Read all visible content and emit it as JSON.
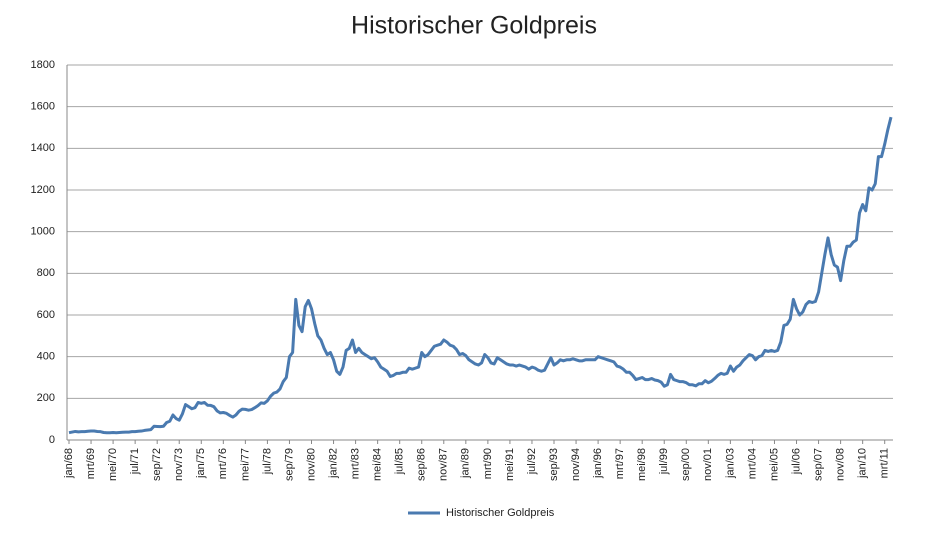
{
  "chart_data": {
    "type": "line",
    "title": "Historischer Goldpreis",
    "categories": [
      "jan/68",
      null,
      null,
      null,
      null,
      null,
      null,
      "mrt/69",
      null,
      null,
      null,
      null,
      null,
      null,
      "mei/70",
      null,
      null,
      null,
      null,
      null,
      null,
      "jul/71",
      null,
      null,
      null,
      null,
      null,
      null,
      "sep/72",
      null,
      null,
      null,
      null,
      null,
      null,
      "nov/73",
      null,
      null,
      null,
      null,
      null,
      null,
      "jan/75",
      null,
      null,
      null,
      null,
      null,
      null,
      "mrt/76",
      null,
      null,
      null,
      null,
      null,
      null,
      "mei/77",
      null,
      null,
      null,
      null,
      null,
      null,
      "jul/78",
      null,
      null,
      null,
      null,
      null,
      null,
      "sep/79",
      null,
      null,
      null,
      null,
      null,
      null,
      "nov/80",
      null,
      null,
      null,
      null,
      null,
      null,
      "jan/82",
      null,
      null,
      null,
      null,
      null,
      null,
      "mrt/83",
      null,
      null,
      null,
      null,
      null,
      null,
      "mei/84",
      null,
      null,
      null,
      null,
      null,
      null,
      "jul/85",
      null,
      null,
      null,
      null,
      null,
      null,
      "sep/86",
      null,
      null,
      null,
      null,
      null,
      null,
      "nov/87",
      null,
      null,
      null,
      null,
      null,
      null,
      "jan/89",
      null,
      null,
      null,
      null,
      null,
      null,
      "mrt/90",
      null,
      null,
      null,
      null,
      null,
      null,
      "mei/91",
      null,
      null,
      null,
      null,
      null,
      null,
      "jul/92",
      null,
      null,
      null,
      null,
      null,
      null,
      "sep/93",
      null,
      null,
      null,
      null,
      null,
      null,
      "nov/94",
      null,
      null,
      null,
      null,
      null,
      null,
      "jan/96",
      null,
      null,
      null,
      null,
      null,
      null,
      "mrt/97",
      null,
      null,
      null,
      null,
      null,
      null,
      "mei/98",
      null,
      null,
      null,
      null,
      null,
      null,
      "jul/99",
      null,
      null,
      null,
      null,
      null,
      null,
      "sep/00",
      null,
      null,
      null,
      null,
      null,
      null,
      "nov/01",
      null,
      null,
      null,
      null,
      null,
      null,
      "jan/03",
      null,
      null,
      null,
      null,
      null,
      null,
      "mrt/04",
      null,
      null,
      null,
      null,
      null,
      null,
      "mei/05",
      null,
      null,
      null,
      null,
      null,
      null,
      "jul/06",
      null,
      null,
      null,
      null,
      null,
      null,
      "sep/07",
      null,
      null,
      null,
      null,
      null,
      null,
      "nov/08",
      null,
      null,
      null,
      null,
      null,
      null,
      "jan/10",
      null,
      null,
      null,
      null,
      null,
      null,
      "mrt/11",
      null,
      null
    ],
    "series": [
      {
        "name": "Historischer Goldpreis",
        "color": "#4a7ab0",
        "values": [
          35,
          38,
          41,
          39,
          40,
          40,
          42,
          43,
          43,
          41,
          40,
          36,
          35,
          35,
          36,
          35,
          36,
          37,
          38,
          38,
          40,
          40,
          42,
          43,
          46,
          48,
          50,
          66,
          65,
          64,
          66,
          84,
          90,
          120,
          103,
          95,
          125,
          170,
          160,
          150,
          155,
          180,
          176,
          180,
          167,
          166,
          160,
          140,
          130,
          132,
          128,
          118,
          110,
          120,
          138,
          148,
          147,
          143,
          146,
          155,
          165,
          178,
          176,
          188,
          210,
          225,
          230,
          245,
          280,
          300,
          400,
          420,
          675,
          550,
          520,
          640,
          670,
          630,
          560,
          500,
          480,
          440,
          410,
          420,
          385,
          330,
          315,
          350,
          430,
          440,
          480,
          420,
          440,
          420,
          410,
          400,
          390,
          395,
          375,
          350,
          340,
          330,
          305,
          310,
          320,
          320,
          325,
          325,
          345,
          340,
          345,
          350,
          420,
          400,
          410,
          430,
          450,
          455,
          460,
          480,
          470,
          455,
          450,
          435,
          410,
          415,
          405,
          385,
          375,
          365,
          360,
          370,
          410,
          395,
          370,
          365,
          395,
          385,
          375,
          365,
          360,
          360,
          355,
          360,
          355,
          350,
          340,
          350,
          345,
          335,
          330,
          335,
          365,
          395,
          360,
          370,
          385,
          380,
          385,
          385,
          390,
          385,
          380,
          380,
          385,
          385,
          385,
          385,
          400,
          395,
          390,
          385,
          380,
          375,
          355,
          350,
          340,
          325,
          325,
          310,
          290,
          295,
          300,
          290,
          290,
          295,
          288,
          285,
          278,
          258,
          265,
          315,
          290,
          285,
          280,
          280,
          275,
          265,
          265,
          260,
          270,
          270,
          285,
          275,
          282,
          295,
          310,
          320,
          315,
          320,
          355,
          330,
          350,
          360,
          380,
          395,
          410,
          405,
          385,
          400,
          405,
          430,
          425,
          430,
          425,
          430,
          470,
          550,
          555,
          580,
          675,
          630,
          600,
          615,
          650,
          665,
          660,
          665,
          710,
          800,
          890,
          970,
          890,
          840,
          830,
          765,
          860,
          930,
          930,
          950,
          960,
          1090,
          1130,
          1100,
          1210,
          1200,
          1230,
          1360,
          1360,
          1420,
          1490,
          1550
        ]
      }
    ],
    "ylim": [
      0,
      1800
    ],
    "yticks": [
      0,
      200,
      400,
      600,
      800,
      1000,
      1200,
      1400,
      1600,
      1800
    ],
    "grid": true
  }
}
